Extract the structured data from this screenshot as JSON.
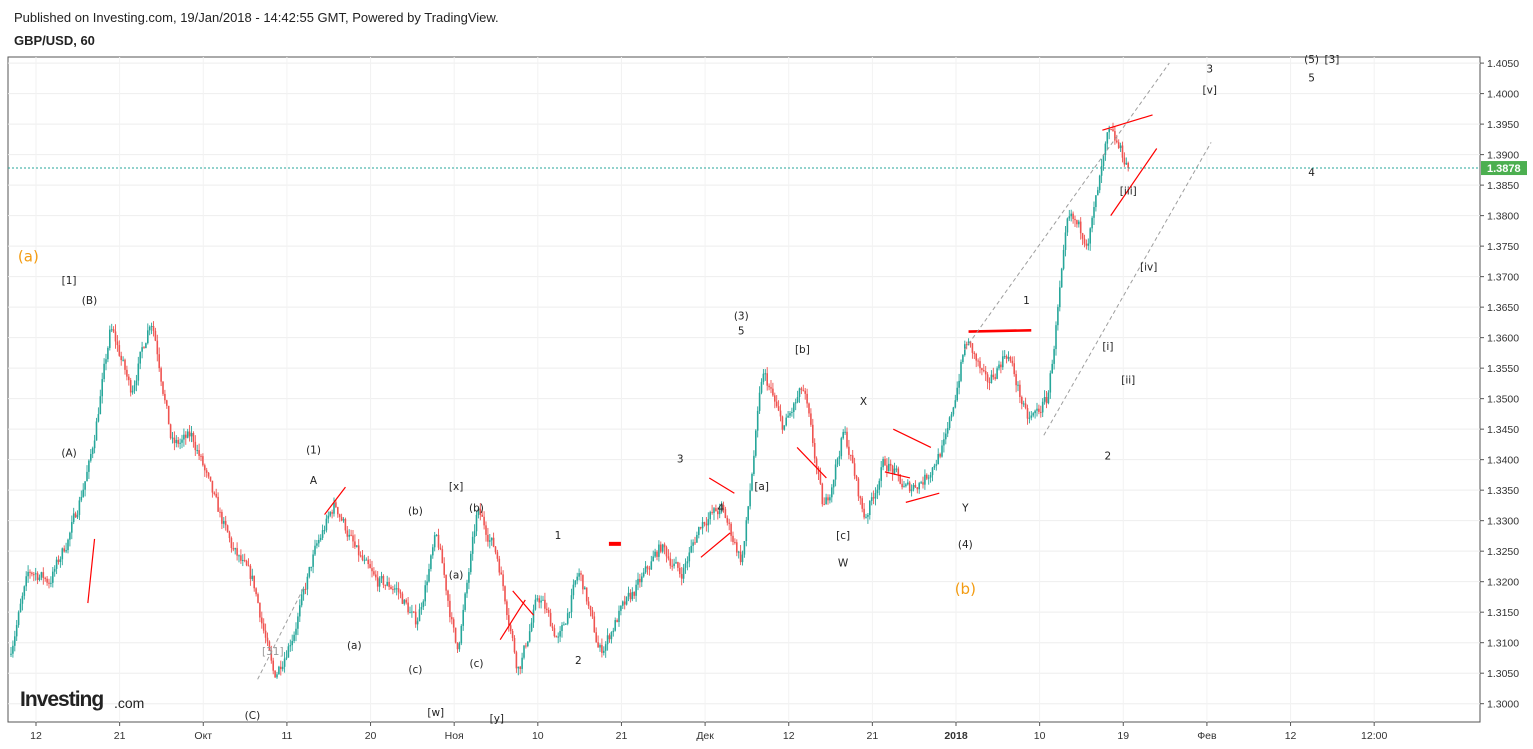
{
  "header": {
    "published": "Published on Investing.com, 19/Jan/2018 - 14:42:55 GMT, Powered by TradingView.",
    "symbol": "GBP/USD, 60"
  },
  "colors": {
    "up": "#26a69a",
    "down": "#ef5350",
    "annotation_red": "#ff0000",
    "wave_orange": "#f39c12",
    "price_label_bg": "#4caf50",
    "channel": "#9e9e9e"
  },
  "logo": {
    "brand": "Investing",
    "suffix": ".com"
  },
  "chart_data": {
    "type": "candlestick",
    "title": "GBP/USD, 60",
    "ylim": [
      1.297,
      1.406
    ],
    "y_ticks": [
      "1.4050",
      "1.4000",
      "1.3950",
      "1.3900",
      "1.3850",
      "1.3800",
      "1.3750",
      "1.3700",
      "1.3650",
      "1.3600",
      "1.3550",
      "1.3500",
      "1.3450",
      "1.3400",
      "1.3350",
      "1.3300",
      "1.3250",
      "1.3200",
      "1.3150",
      "1.3100",
      "1.3050",
      "1.3000"
    ],
    "x_ticks": [
      "12",
      "21",
      "Окт",
      "11",
      "20",
      "Ноя",
      "10",
      "21",
      "Дек",
      "12",
      "21",
      "2018",
      "10",
      "19",
      "Фев",
      "12",
      "12:00"
    ],
    "current_price": "1.3878",
    "price_path_anchors": [
      1.308,
      1.322,
      1.32,
      1.328,
      1.34,
      1.362,
      1.351,
      1.364,
      1.342,
      1.344,
      1.334,
      1.325,
      1.32,
      1.304,
      1.312,
      1.325,
      1.333,
      1.325,
      1.32,
      1.319,
      1.313,
      1.328,
      1.308,
      1.332,
      1.324,
      1.305,
      1.318,
      1.31,
      1.322,
      1.308,
      1.315,
      1.32,
      1.326,
      1.321,
      1.33,
      1.332,
      1.323,
      1.355,
      1.345,
      1.352,
      1.331,
      1.345,
      1.33,
      1.34,
      1.335,
      1.337,
      1.343,
      1.36,
      1.352,
      1.358,
      1.346,
      1.35,
      1.38,
      1.376,
      1.394,
      1.3878
    ],
    "wave_labels": [
      {
        "text": "(a)",
        "x": 1,
        "y": 1.3725,
        "style": "big"
      },
      {
        "text": "[1]",
        "x": 3,
        "y": 1.3688
      },
      {
        "text": "(B)",
        "x": 4,
        "y": 1.3655
      },
      {
        "text": "(A)",
        "x": 3,
        "y": 1.3405
      },
      {
        "text": "(C)",
        "x": 12,
        "y": 1.2975
      },
      {
        "text": "[31]",
        "x": 13,
        "y": 1.308,
        "style": "grey"
      },
      {
        "text": "(1)",
        "x": 15,
        "y": 1.341
      },
      {
        "text": "A",
        "x": 15,
        "y": 1.336
      },
      {
        "text": "(a)",
        "x": 17,
        "y": 1.309
      },
      {
        "text": "(b)",
        "x": 20,
        "y": 1.331
      },
      {
        "text": "(c)",
        "x": 20,
        "y": 1.305
      },
      {
        "text": "[w]",
        "x": 21,
        "y": 1.298
      },
      {
        "text": "[x]",
        "x": 22,
        "y": 1.335
      },
      {
        "text": "(b)",
        "x": 23,
        "y": 1.3315
      },
      {
        "text": "(a)",
        "x": 22,
        "y": 1.3205
      },
      {
        "text": "(c)",
        "x": 23,
        "y": 1.306
      },
      {
        "text": "[y]",
        "x": 24,
        "y": 1.297
      },
      {
        "text": "1",
        "x": 27,
        "y": 1.327
      },
      {
        "text": "2",
        "x": 28,
        "y": 1.3065
      },
      {
        "text": "3",
        "x": 33,
        "y": 1.3395
      },
      {
        "text": "4",
        "x": 35,
        "y": 1.3315
      },
      {
        "text": "(3)",
        "x": 36,
        "y": 1.363
      },
      {
        "text": "5",
        "x": 36,
        "y": 1.3605
      },
      {
        "text": "[b]",
        "x": 39,
        "y": 1.3575
      },
      {
        "text": "[a]",
        "x": 37,
        "y": 1.335
      },
      {
        "text": "[c]",
        "x": 41,
        "y": 1.327
      },
      {
        "text": "W",
        "x": 41,
        "y": 1.3225
      },
      {
        "text": "X",
        "x": 42,
        "y": 1.349
      },
      {
        "text": "Y",
        "x": 47,
        "y": 1.3315
      },
      {
        "text": "(4)",
        "x": 47,
        "y": 1.3255
      },
      {
        "text": "(b)",
        "x": 47,
        "y": 1.318,
        "style": "big"
      },
      {
        "text": "1",
        "x": 50,
        "y": 1.3655
      },
      {
        "text": "2",
        "x": 54,
        "y": 1.34
      },
      {
        "text": "[i]",
        "x": 54,
        "y": 1.358
      },
      {
        "text": "[ii]",
        "x": 55,
        "y": 1.3525
      },
      {
        "text": "[iii]",
        "x": 55,
        "y": 1.3835
      },
      {
        "text": "[iv]",
        "x": 56,
        "y": 1.371
      },
      {
        "text": "[v]",
        "x": 59,
        "y": 1.4
      },
      {
        "text": "3",
        "x": 59,
        "y": 1.4035
      },
      {
        "text": "(5)",
        "x": 64,
        "y": 1.405
      },
      {
        "text": "5",
        "x": 64,
        "y": 1.402
      },
      {
        "text": "[3]",
        "x": 65,
        "y": 1.405
      },
      {
        "text": "4",
        "x": 64,
        "y": 1.3865
      }
    ]
  }
}
